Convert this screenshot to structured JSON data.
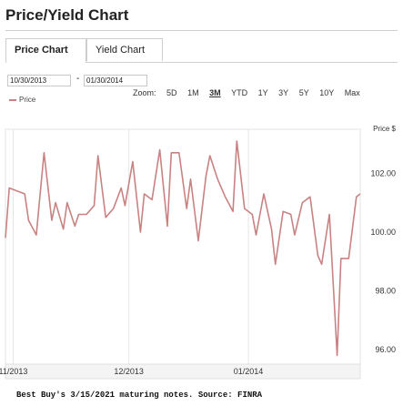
{
  "page_title": "Price/Yield Chart",
  "tabs": [
    {
      "label": "Price Chart",
      "active": true
    },
    {
      "label": "Yield Chart",
      "active": false
    }
  ],
  "date_range": {
    "start": "10/30/2013",
    "separator": "-",
    "end": "01/30/2014"
  },
  "legend": {
    "label": "Price",
    "color": "#c98282"
  },
  "zoom": {
    "label": "Zoom:",
    "options": [
      "5D",
      "1M",
      "3M",
      "YTD",
      "1Y",
      "3Y",
      "5Y",
      "10Y",
      "Max"
    ],
    "selected": "3M"
  },
  "chart_data": {
    "type": "line",
    "ylabel": "Price $",
    "ylim": [
      95.5,
      103.5
    ],
    "yticks": [
      96,
      98,
      100,
      102
    ],
    "ytick_labels": [
      "96.00",
      "98.00",
      "100.00",
      "102.00"
    ],
    "x_range": [
      "2013-10-30",
      "2014-01-30"
    ],
    "xticks": [
      {
        "date": "2013-11-01",
        "label": "11/2013"
      },
      {
        "date": "2013-12-01",
        "label": "12/2013"
      },
      {
        "date": "2014-01-01",
        "label": "01/2014"
      }
    ],
    "grid": "vertical",
    "series": [
      {
        "name": "Price",
        "color": "#c98282",
        "x": [
          "2013-10-30",
          "2013-10-31",
          "2013-11-02",
          "2013-11-04",
          "2013-11-05",
          "2013-11-07",
          "2013-11-09",
          "2013-11-11",
          "2013-11-12",
          "2013-11-14",
          "2013-11-15",
          "2013-11-17",
          "2013-11-18",
          "2013-11-20",
          "2013-11-22",
          "2013-11-23",
          "2013-11-25",
          "2013-11-27",
          "2013-11-29",
          "2013-11-30",
          "2013-12-02",
          "2013-12-04",
          "2013-12-05",
          "2013-12-07",
          "2013-12-09",
          "2013-12-11",
          "2013-12-12",
          "2013-12-14",
          "2013-12-16",
          "2013-12-17",
          "2013-12-19",
          "2013-12-21",
          "2013-12-22",
          "2013-12-24",
          "2013-12-26",
          "2013-12-28",
          "2013-12-29",
          "2013-12-31",
          "2014-01-02",
          "2014-01-03",
          "2014-01-05",
          "2014-01-07",
          "2014-01-08",
          "2014-01-10",
          "2014-01-12",
          "2014-01-13",
          "2014-01-15",
          "2014-01-17",
          "2014-01-19",
          "2014-01-20",
          "2014-01-22",
          "2014-01-24",
          "2014-01-25",
          "2014-01-27",
          "2014-01-29",
          "2014-01-30"
        ],
        "values": [
          99.8,
          101.5,
          101.4,
          101.3,
          100.4,
          99.9,
          102.7,
          100.4,
          101.0,
          100.1,
          101.0,
          100.2,
          100.6,
          100.6,
          100.9,
          102.6,
          100.5,
          100.8,
          101.5,
          100.9,
          102.4,
          100.0,
          101.3,
          101.1,
          102.8,
          100.2,
          102.7,
          102.7,
          100.8,
          101.8,
          99.7,
          101.9,
          102.6,
          101.8,
          101.2,
          100.7,
          103.1,
          100.8,
          100.6,
          99.9,
          101.3,
          100.1,
          98.9,
          100.7,
          100.6,
          99.9,
          101.0,
          101.2,
          99.2,
          98.9,
          100.6,
          95.8,
          99.1,
          99.1,
          101.2,
          101.3
        ]
      }
    ]
  },
  "footer": "Best Buy's 3/15/2021 maturing notes. Source: FINRA"
}
